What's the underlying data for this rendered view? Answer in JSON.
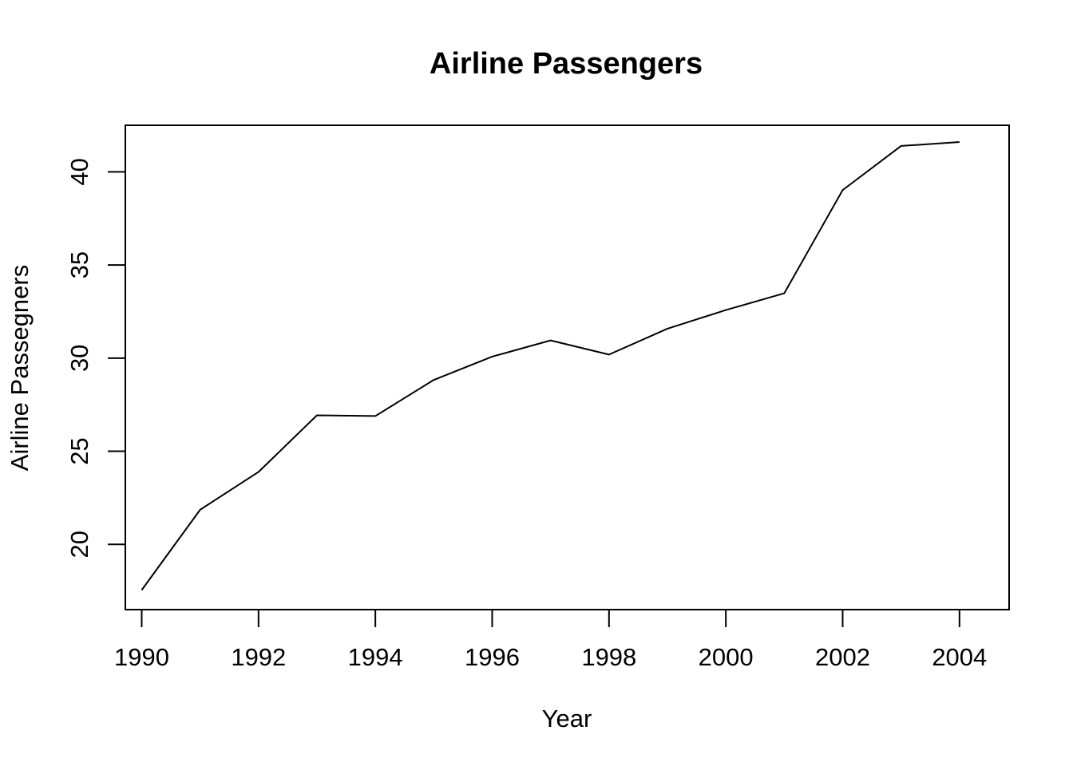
{
  "chart_data": {
    "type": "line",
    "title": "Airline Passengers",
    "xlabel": "Year",
    "ylabel": "Airline Passegners",
    "x": [
      1990,
      1991,
      1992,
      1993,
      1994,
      1995,
      1996,
      1997,
      1998,
      1999,
      2000,
      2001,
      2002,
      2003,
      2004
    ],
    "series": [
      {
        "values": [
          17.55,
          21.86,
          23.89,
          26.93,
          26.89,
          28.83,
          30.08,
          30.95,
          30.19,
          31.58,
          32.58,
          33.48,
          39.02,
          41.39,
          41.6
        ]
      }
    ],
    "xlim": [
      1989.72,
      2004.85
    ],
    "ylim": [
      16.5,
      42.5
    ],
    "x_ticks": [
      "1990",
      "1992",
      "1994",
      "1996",
      "1998",
      "2000",
      "2002",
      "2004"
    ],
    "y_ticks": [
      "20",
      "25",
      "30",
      "35",
      "40"
    ],
    "grid": false,
    "line_color": "#000000"
  }
}
